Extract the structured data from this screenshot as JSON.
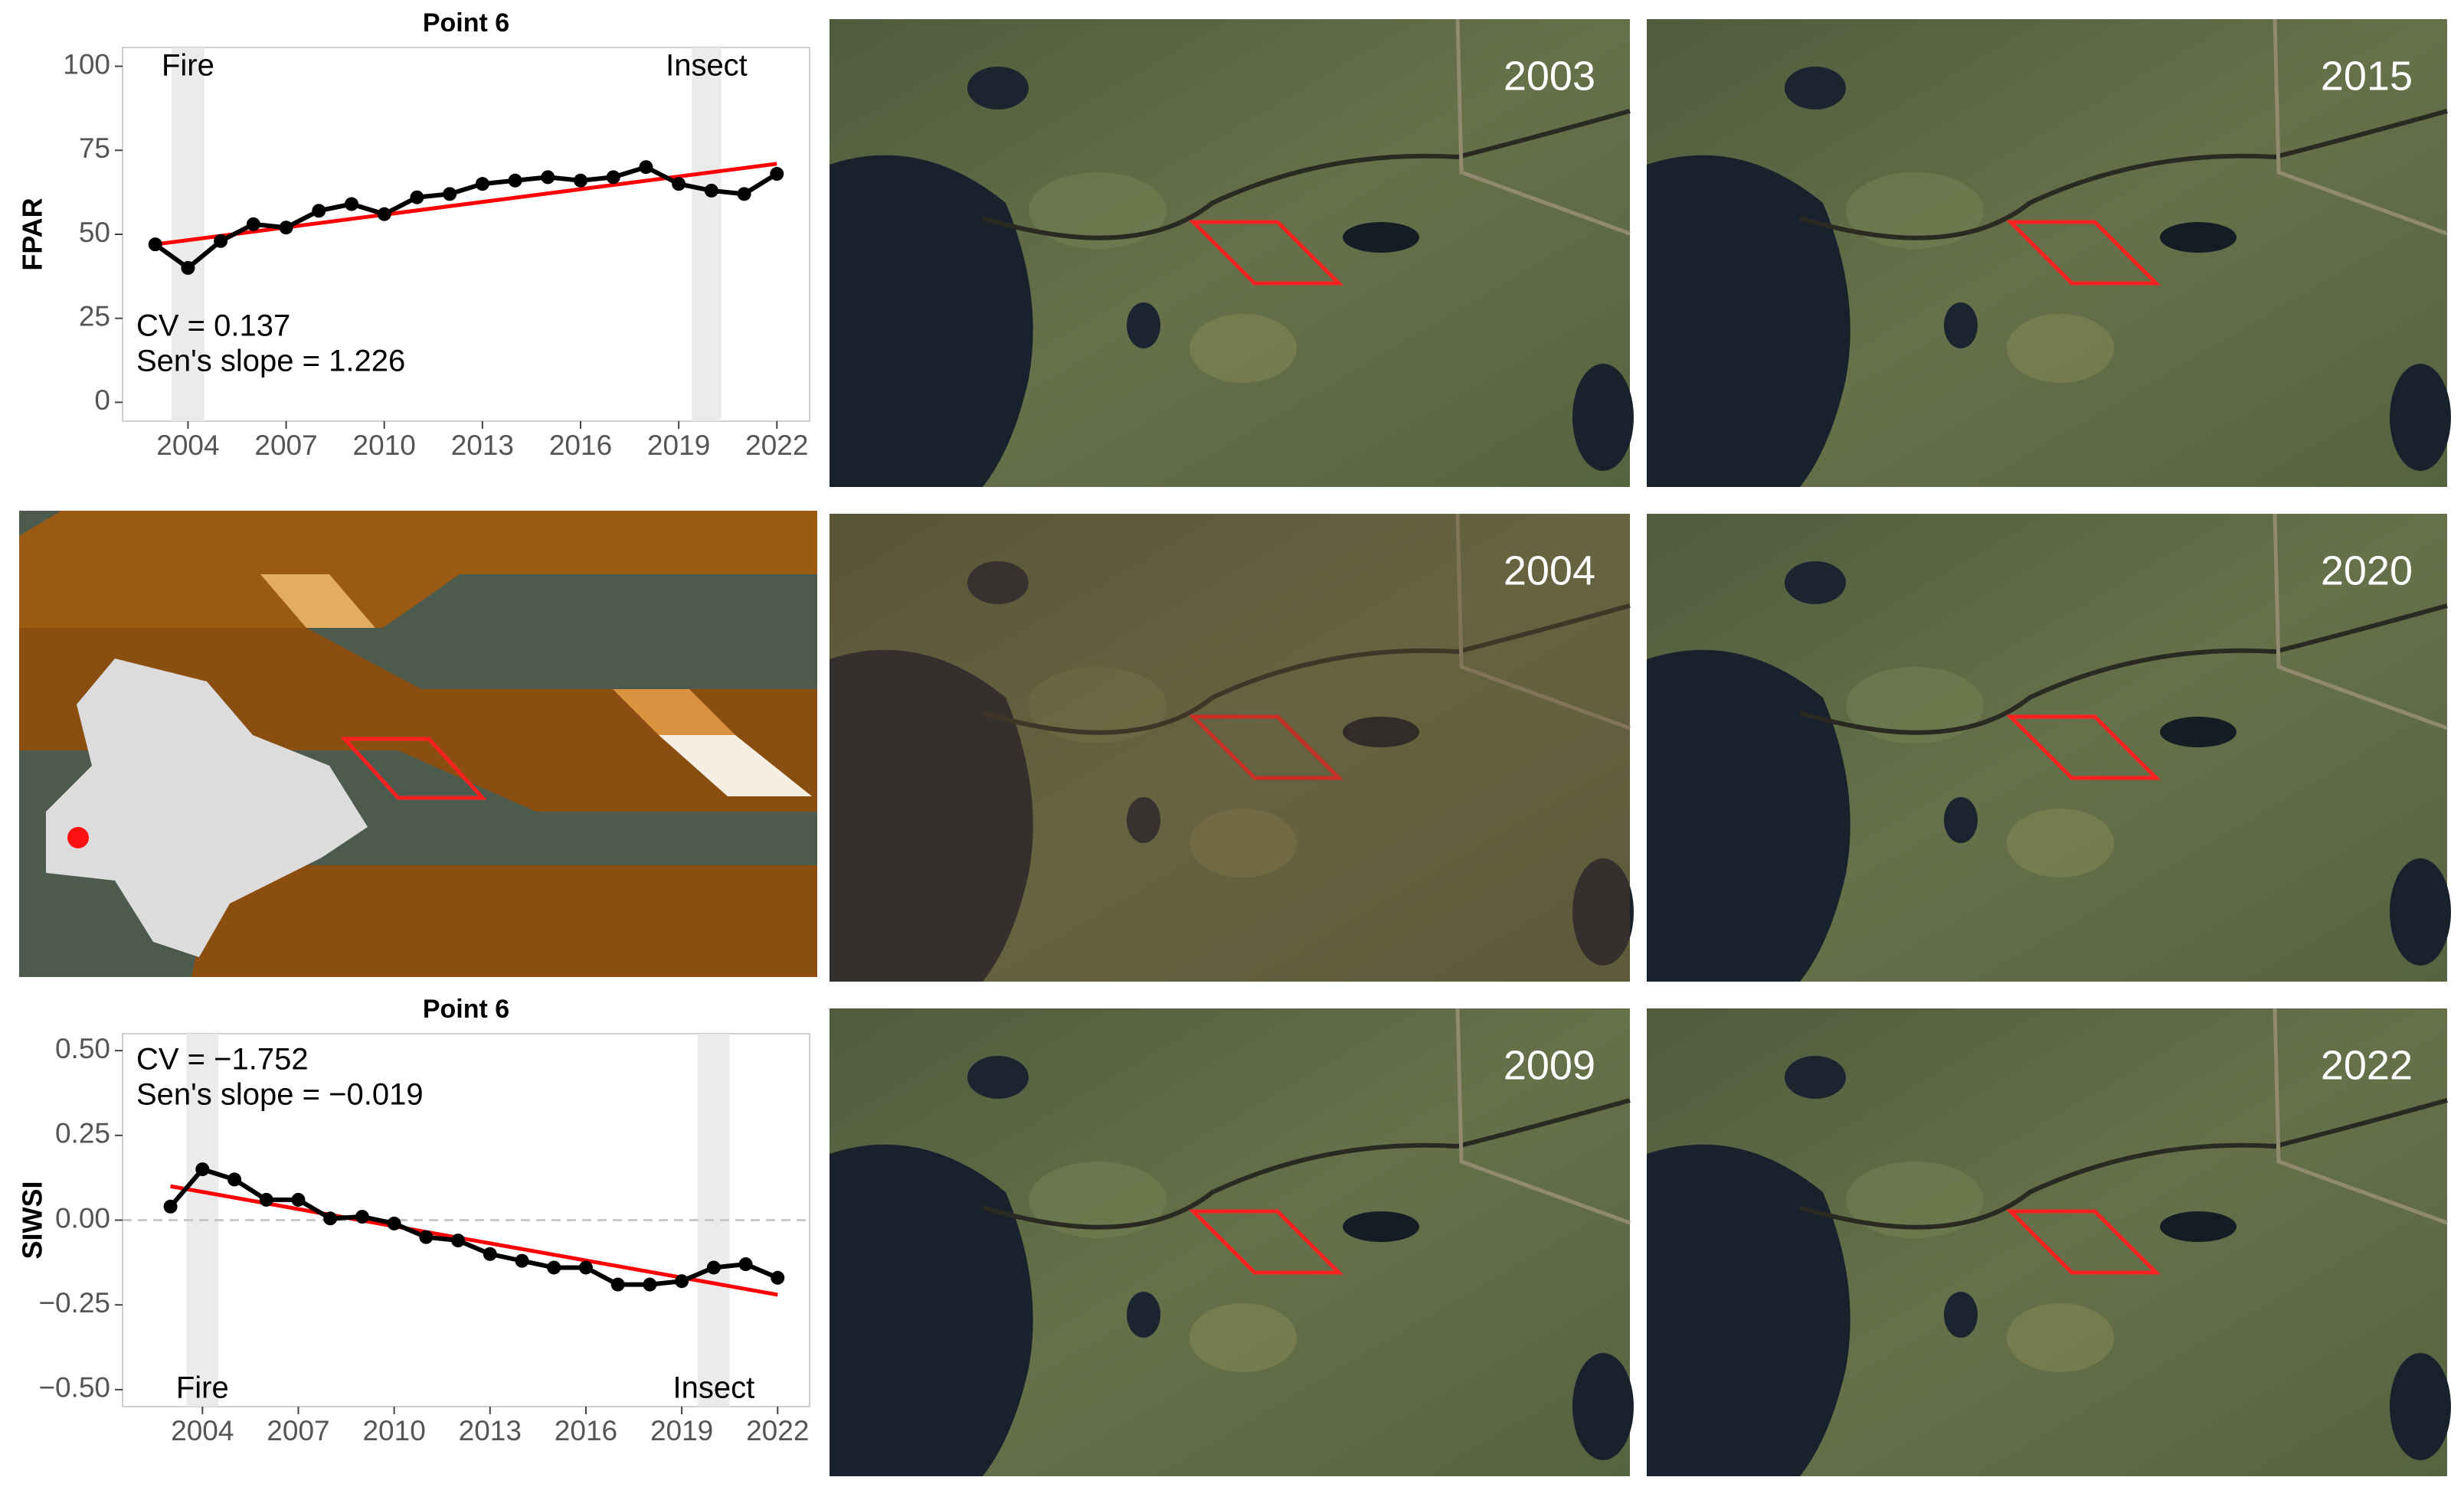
{
  "chart_data": [
    {
      "type": "line",
      "title": "Point 6",
      "y_label": "FPAR",
      "x": [
        2003,
        2004,
        2005,
        2006,
        2007,
        2008,
        2009,
        2010,
        2011,
        2012,
        2013,
        2014,
        2015,
        2016,
        2017,
        2018,
        2019,
        2020,
        2021,
        2022
      ],
      "series": [
        {
          "color": "#000000",
          "values": [
            47,
            40,
            48,
            53,
            52,
            57,
            59,
            56,
            61,
            62,
            65,
            66,
            67,
            66,
            67,
            70,
            65,
            63,
            62,
            68
          ]
        }
      ],
      "trend": {
        "color": "#ff0000",
        "x": [
          2003,
          2022
        ],
        "values": [
          47,
          71
        ]
      },
      "shaded": [
        {
          "x": [
            2003.5,
            2004.5
          ],
          "label": "Fire"
        },
        {
          "x": [
            2019.4,
            2020.3
          ],
          "label": "Insect"
        }
      ],
      "shaded_label_position": "top",
      "annotations": [
        "CV = 0.137",
        "Sen's slope = 1.226"
      ],
      "annotation_corner": "bottom-left",
      "xlim": [
        2002,
        2023
      ],
      "ylim": [
        -5.6,
        105.6
      ],
      "xticks": [
        2004,
        2007,
        2010,
        2013,
        2016,
        2019,
        2022
      ],
      "yticks": [
        0,
        25,
        50,
        75,
        100
      ],
      "grid": false
    },
    {
      "type": "line",
      "title": "Point 6",
      "y_label": "SIWSI",
      "x": [
        2003,
        2004,
        2005,
        2006,
        2007,
        2008,
        2009,
        2010,
        2011,
        2012,
        2013,
        2014,
        2015,
        2016,
        2017,
        2018,
        2019,
        2020,
        2021,
        2022
      ],
      "series": [
        {
          "color": "#000000",
          "values": [
            0.04,
            0.15,
            0.12,
            0.06,
            0.06,
            0.005,
            0.01,
            -0.01,
            -0.05,
            -0.06,
            -0.1,
            -0.12,
            -0.14,
            -0.14,
            -0.19,
            -0.19,
            -0.18,
            -0.14,
            -0.13,
            -0.17
          ]
        }
      ],
      "trend": {
        "color": "#ff0000",
        "x": [
          2003,
          2022
        ],
        "values": [
          0.1,
          -0.22
        ]
      },
      "hline": 0,
      "shaded": [
        {
          "x": [
            2003.5,
            2004.5
          ],
          "label": "Fire"
        },
        {
          "x": [
            2019.5,
            2020.5
          ],
          "label": "Insect"
        }
      ],
      "shaded_label_position": "bottom",
      "annotations": [
        "CV = −1.752",
        "Sen's slope = −0.019"
      ],
      "annotation_corner": "top-left",
      "xlim": [
        2001.5,
        2023
      ],
      "ylim": [
        -0.55,
        0.55
      ],
      "xticks": [
        2004,
        2007,
        2010,
        2013,
        2016,
        2019,
        2022
      ],
      "yticks": [
        {
          "value": 0.5,
          "label": "0.50"
        },
        {
          "value": 0.25,
          "label": "0.25"
        },
        {
          "value": 0,
          "label": "0.00"
        },
        {
          "value": -0.25,
          "label": "−0.25"
        },
        {
          "value": -0.5,
          "label": "−0.50"
        }
      ],
      "grid": false
    }
  ],
  "images": [
    {
      "label": "2003"
    },
    {
      "label": "2015"
    },
    {
      "label": "2004"
    },
    {
      "label": "2020"
    },
    {
      "label": "2009"
    },
    {
      "label": "2022"
    }
  ]
}
